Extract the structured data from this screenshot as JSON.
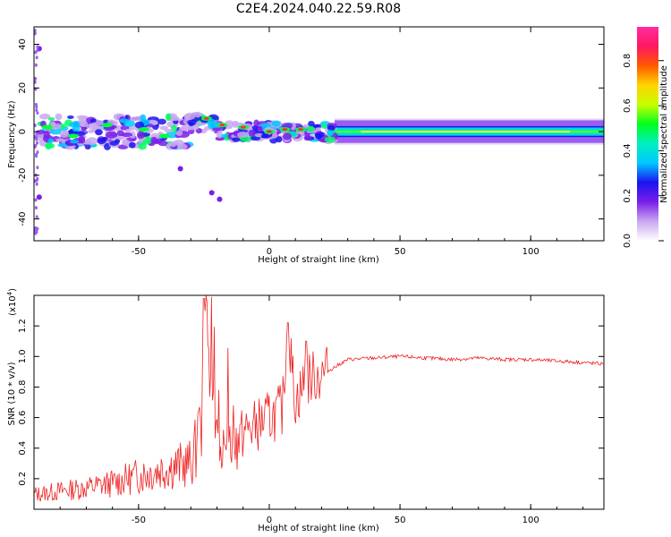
{
  "title": "C2E4.2024.040.22.59.R08",
  "chart_data": [
    {
      "type": "heatmap",
      "xlabel": "Height of straight line (km)",
      "ylabel": "Frequency (Hz)",
      "xlim": [
        -90,
        128
      ],
      "ylim": [
        -50,
        48
      ],
      "xticks": [
        -50,
        0,
        50,
        100
      ],
      "yticks": [
        -40,
        -20,
        0,
        20,
        40
      ],
      "colorbar": {
        "label": "Normalized spectral amplitude",
        "range": [
          0,
          0.95
        ],
        "ticks": [
          "0.0",
          "0.2",
          "0.4",
          "0.6",
          "0.8"
        ],
        "colors": [
          "#ffffff",
          "#c9a8f0",
          "#7a1ee8",
          "#1a14f0",
          "#00c8ff",
          "#00f0c0",
          "#00ff20",
          "#c8ff00",
          "#ffd400",
          "#ff5a00",
          "#ff1860",
          "#ff2da0"
        ]
      },
      "band": {
        "x_start": -88,
        "x_end": 128,
        "center_freq": 0,
        "strong_band_halfwidth": 2.5,
        "weak_band_halfwidth": 6,
        "noisy_region_end": 25
      },
      "scattered_blobs": [
        {
          "x": -22,
          "y": -28
        },
        {
          "x": -19,
          "y": -31
        },
        {
          "x": -34,
          "y": -17
        },
        {
          "x": -88,
          "y": 38
        },
        {
          "x": -88,
          "y": -30
        }
      ]
    },
    {
      "type": "line",
      "xlabel": "Height of straight line (km)",
      "ylabel": "SNR (10 * v/v)",
      "multiplier": "(x10",
      "multiplier_exp": "4",
      "multiplier_close": ")",
      "xlim": [
        -90,
        128
      ],
      "ylim": [
        0,
        1.4
      ],
      "xticks": [
        -50,
        0,
        50,
        100
      ],
      "yticks": [
        "0.2",
        "0.4",
        "0.6",
        "0.8",
        "1.0",
        "1.2"
      ],
      "line_color": "#ee2222",
      "series": [
        {
          "x": [
            -88,
            -80,
            -70,
            -60,
            -50,
            -40,
            -30,
            -26,
            -25,
            -20,
            -15,
            -10,
            -5,
            0,
            5,
            7,
            10,
            14,
            20,
            30,
            40,
            50,
            60,
            70,
            80,
            90,
            100,
            110,
            120,
            128
          ],
          "values": [
            0.1,
            0.12,
            0.14,
            0.17,
            0.22,
            0.27,
            0.3,
            0.5,
            1.38,
            0.45,
            0.35,
            0.5,
            0.55,
            0.6,
            0.65,
            1.2,
            0.7,
            0.85,
            0.88,
            0.98,
            0.99,
            1.0,
            0.99,
            0.98,
            0.99,
            0.98,
            0.98,
            0.97,
            0.96,
            0.95
          ]
        }
      ]
    }
  ]
}
